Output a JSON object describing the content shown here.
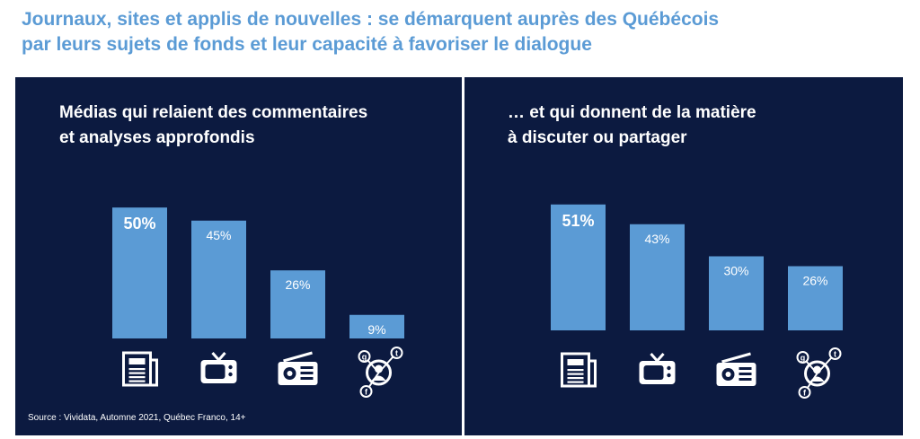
{
  "title": {
    "line1": "Journaux, sites et applis de nouvelles : se démarquent auprès des Québécois",
    "line2": "par leurs sujets de fonds et leur capacité à favoriser le dialogue"
  },
  "colors": {
    "title": "#5b9bd5",
    "panel_bg": "#0c1a40",
    "bar": "#5b9bd5",
    "text": "#ffffff"
  },
  "source": "Source : Vividata, Automne 2021, Québec Franco, 14+",
  "chart_data": [
    {
      "type": "bar",
      "title_line1": "Médias qui relaient des commentaires",
      "title_line2": "et analyses approfondis",
      "categories": [
        "newspaper-icon",
        "tv-icon",
        "radio-icon",
        "social-media-icon"
      ],
      "values": [
        50,
        45,
        26,
        9
      ],
      "labels": [
        "50%",
        "45%",
        "26%",
        "9%"
      ],
      "highlight_index": 0,
      "unit": "%"
    },
    {
      "type": "bar",
      "title_line1": "… et qui donnent de la matière",
      "title_line2": "à discuter ou partager",
      "categories": [
        "newspaper-icon",
        "tv-icon",
        "radio-icon",
        "social-media-icon"
      ],
      "values": [
        51,
        43,
        30,
        26
      ],
      "labels": [
        "51%",
        "43%",
        "30%",
        "26%"
      ],
      "highlight_index": 0,
      "unit": "%"
    }
  ]
}
